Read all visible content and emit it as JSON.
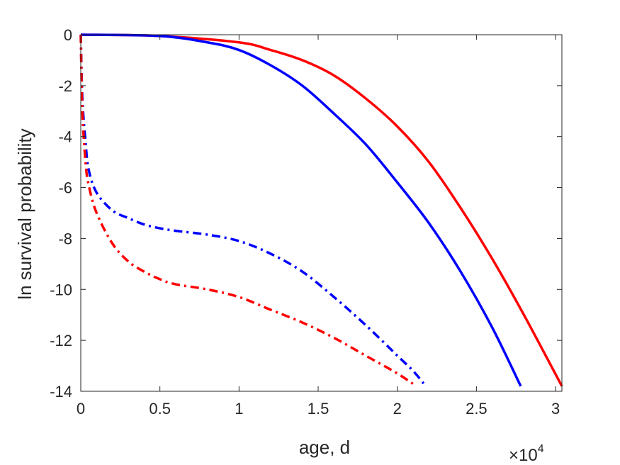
{
  "chart_data": {
    "type": "line",
    "title": "",
    "xlabel": "age, d",
    "ylabel": "ln survival probability",
    "x_multiplier": {
      "base": "×10",
      "exponent": "4"
    },
    "xlim": [
      0,
      30400
    ],
    "ylim": [
      -14,
      0
    ],
    "xticks": [
      0,
      5000,
      10000,
      15000,
      20000,
      25000,
      30000
    ],
    "xtick_labels": [
      "0",
      "0.5",
      "1",
      "1.5",
      "2",
      "2.5",
      "3"
    ],
    "yticks": [
      0,
      -2,
      -4,
      -6,
      -8,
      -10,
      -12,
      -14
    ],
    "ytick_labels": [
      "0",
      "-2",
      "-4",
      "-6",
      "-8",
      "-10",
      "-12",
      "-14"
    ],
    "grid": false,
    "series": [
      {
        "color": "#ff0000",
        "style": "solid",
        "x": [
          0,
          5000,
          10000,
          12000,
          14000,
          16000,
          18000,
          20000,
          22000,
          24000,
          26000,
          28000,
          30400
        ],
        "y": [
          0,
          -0.05,
          -0.3,
          -0.6,
          -1.0,
          -1.6,
          -2.5,
          -3.6,
          -5.0,
          -6.8,
          -8.8,
          -11.0,
          -13.8
        ]
      },
      {
        "color": "#0000ff",
        "style": "solid",
        "x": [
          0,
          5000,
          8000,
          10000,
          12000,
          14000,
          16000,
          18000,
          20000,
          22000,
          24000,
          26000,
          27800
        ],
        "y": [
          0,
          -0.05,
          -0.3,
          -0.6,
          -1.2,
          -2.0,
          -3.1,
          -4.3,
          -5.8,
          -7.4,
          -9.3,
          -11.5,
          -13.8
        ]
      },
      {
        "color": "#0000ff",
        "style": "dashdot",
        "x": [
          0,
          100,
          300,
          500,
          1000,
          2000,
          3000,
          4000,
          5000,
          6000,
          8000,
          10000,
          12000,
          14000,
          16000,
          18000,
          20000,
          21000,
          21800
        ],
        "y": [
          0,
          -2.5,
          -4.2,
          -5.3,
          -6.2,
          -6.9,
          -7.2,
          -7.45,
          -7.6,
          -7.7,
          -7.85,
          -8.1,
          -8.6,
          -9.3,
          -10.3,
          -11.4,
          -12.6,
          -13.2,
          -13.8
        ]
      },
      {
        "color": "#ff0000",
        "style": "dashdot",
        "x": [
          0,
          100,
          300,
          500,
          1000,
          2000,
          3000,
          4000,
          5000,
          6000,
          8000,
          10000,
          12000,
          14000,
          16000,
          18000,
          20000,
          21200
        ],
        "y": [
          0,
          -3.0,
          -5.0,
          -5.9,
          -7.0,
          -8.2,
          -8.9,
          -9.3,
          -9.6,
          -9.8,
          -10.0,
          -10.3,
          -10.8,
          -11.3,
          -11.9,
          -12.6,
          -13.3,
          -13.8
        ]
      }
    ]
  }
}
